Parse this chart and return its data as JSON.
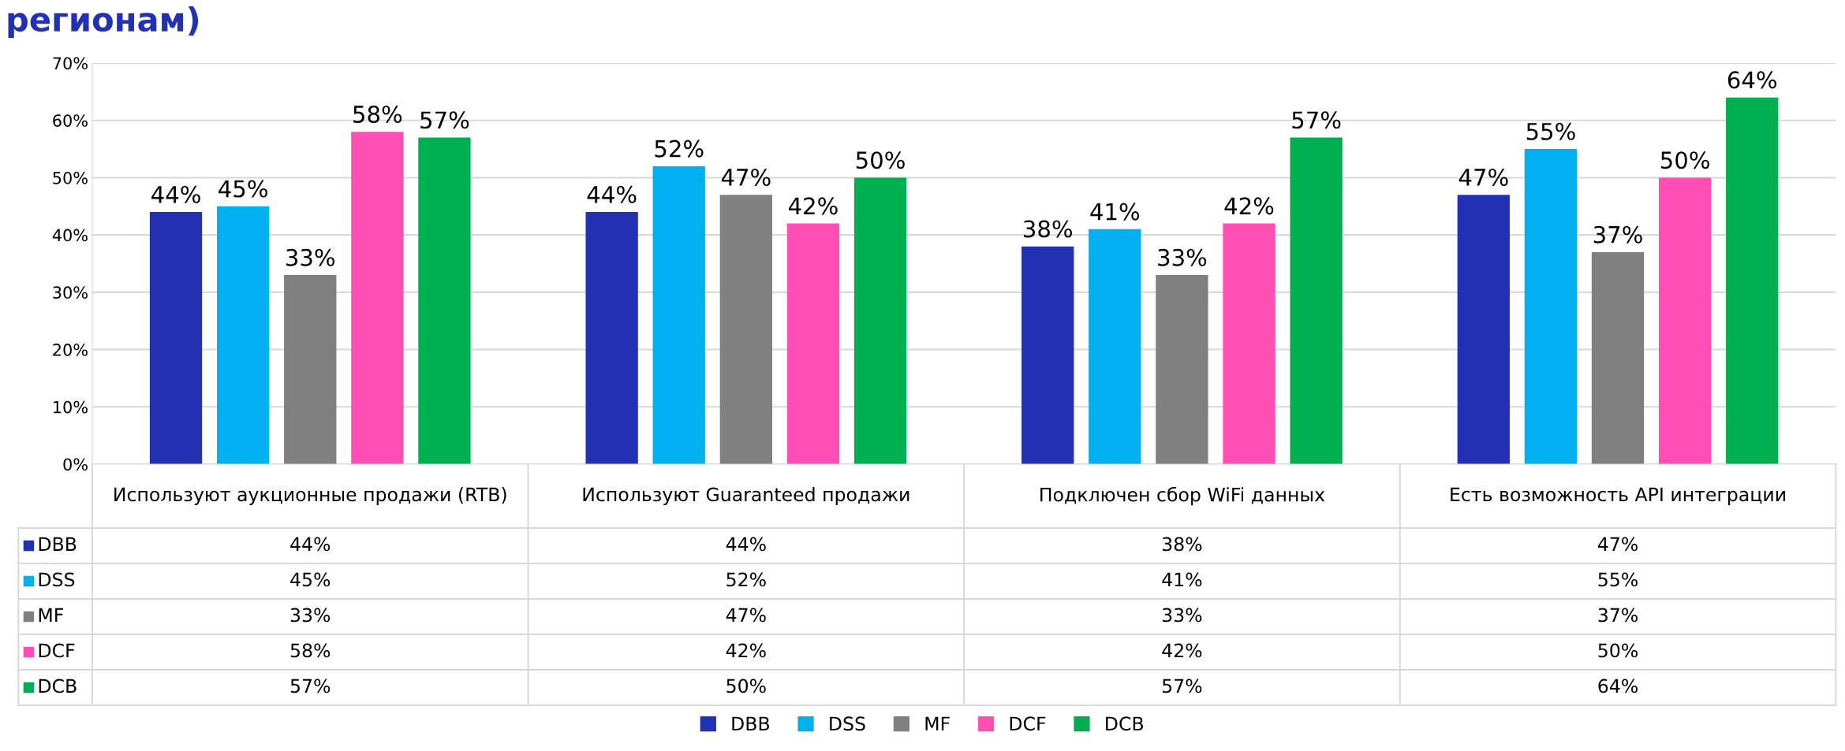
{
  "chart_data": {
    "type": "bar",
    "title": "регионам)",
    "categories": [
      "Используют аукционные продажи (RTB)",
      "Используют Guaranteed продажи",
      "Подключен сбор WiFi данных",
      "Есть возможность API интеграции"
    ],
    "series": [
      {
        "name": "DBB",
        "color": "#2230b4",
        "values": [
          44,
          44,
          38,
          47
        ],
        "value_labels": [
          "44%",
          "44%",
          "38%",
          "47%"
        ]
      },
      {
        "name": "DSS",
        "color": "#00b0f0",
        "values": [
          45,
          52,
          41,
          55
        ],
        "value_labels": [
          "45%",
          "52%",
          "41%",
          "55%"
        ]
      },
      {
        "name": "MF",
        "color": "#808080",
        "values": [
          33,
          47,
          33,
          37
        ],
        "value_labels": [
          "33%",
          "47%",
          "33%",
          "37%"
        ]
      },
      {
        "name": "DCF",
        "color": "#ff4fb4",
        "values": [
          58,
          42,
          42,
          50
        ],
        "value_labels": [
          "58%",
          "42%",
          "42%",
          "50%"
        ]
      },
      {
        "name": "DCB",
        "color": "#00b050",
        "values": [
          57,
          50,
          57,
          64
        ],
        "value_labels": [
          "57%",
          "50%",
          "57%",
          "64%"
        ]
      }
    ],
    "ylim": [
      0,
      70
    ],
    "yticks": [
      {
        "value": 0,
        "label": "0%"
      },
      {
        "value": 10,
        "label": "10%"
      },
      {
        "value": 20,
        "label": "20%"
      },
      {
        "value": 30,
        "label": "30%"
      },
      {
        "value": 40,
        "label": "40%"
      },
      {
        "value": 50,
        "label": "50%"
      },
      {
        "value": 60,
        "label": "60%"
      },
      {
        "value": 70,
        "label": "70%"
      }
    ],
    "grid": "y",
    "legend": "bottom"
  }
}
